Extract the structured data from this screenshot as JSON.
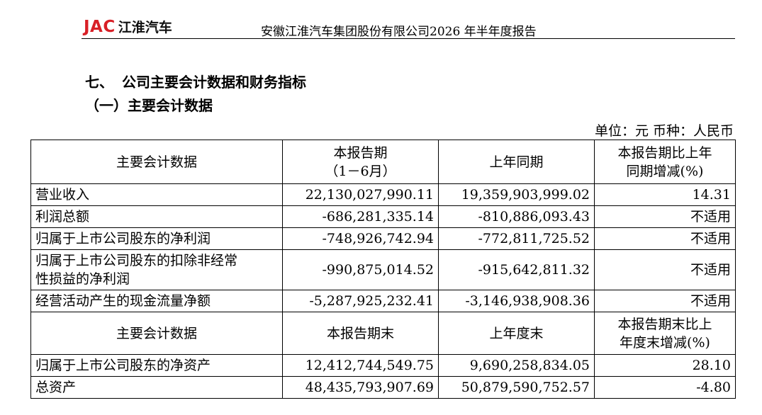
{
  "header": {
    "logo_brand": "JAC",
    "logo_name": "江淮汽车",
    "report_title": "安徽江淮汽车集团股份有限公司2026 年半年度报告"
  },
  "section": {
    "number": "七、",
    "title": "公司主要会计数据和财务指标",
    "subtitle": "（一）主要会计数据"
  },
  "unit_note": "单位：元  币种：人民币",
  "table1": {
    "headers": {
      "col1": "主要会计数据",
      "col2_line1": "本报告期",
      "col2_line2": "（1－6月）",
      "col3": "上年同期",
      "col4_line1": "本报告期比上年",
      "col4_line2": "同期增减(%)"
    },
    "rows": [
      {
        "label": "营业收入",
        "current": "22,130,027,990.11",
        "prior": "19,359,903,999.02",
        "change": "14.31"
      },
      {
        "label": "利润总额",
        "current": "-686,281,335.14",
        "prior": "-810,886,093.43",
        "change": "不适用"
      },
      {
        "label": "归属于上市公司股东的净利润",
        "current": "-748,926,742.94",
        "prior": "-772,811,725.52",
        "change": "不适用"
      },
      {
        "label_line1": "归属于上市公司股东的扣除非经常",
        "label_line2": "性损益的净利润",
        "current": "-990,875,014.52",
        "prior": "-915,642,811.32",
        "change": "不适用"
      },
      {
        "label": "经营活动产生的现金流量净额",
        "current": "-5,287,925,232.41",
        "prior": "-3,146,938,908.36",
        "change": "不适用"
      }
    ]
  },
  "table2": {
    "headers": {
      "col1": "主要会计数据",
      "col2": "本报告期末",
      "col3": "上年度末",
      "col4_line1": "本报告期末比上",
      "col4_line2": "年度末增减(%)"
    },
    "rows": [
      {
        "label": "归属于上市公司股东的净资产",
        "current": "12,412,744,549.75",
        "prior": "9,690,258,834.05",
        "change": "28.10"
      },
      {
        "label": "总资产",
        "current": "48,435,793,907.69",
        "prior": "50,879,590,752.57",
        "change": "-4.80"
      }
    ]
  }
}
